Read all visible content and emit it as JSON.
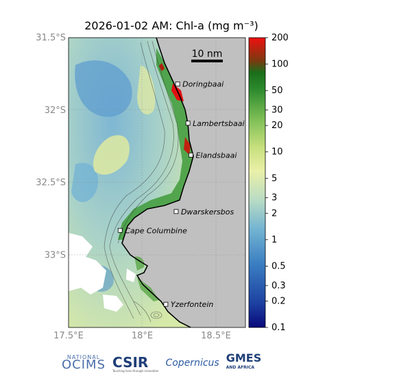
{
  "title": "2026-01-02 AM: Chl-a (mg m⁻³)",
  "chart_data": {
    "type": "heatmap",
    "variable": "Chl-a",
    "units": "mg m⁻³",
    "date": "2026-01-02 AM",
    "scale": "log",
    "colorbar_range": [
      0.1,
      200
    ],
    "colorbar_ticks": [
      "200",
      "100",
      "50",
      "30",
      "20",
      "10",
      "5",
      "3",
      "2",
      "1",
      "0.5",
      "0.3",
      "0.2",
      "0.1"
    ],
    "colorbar_values": [
      200,
      100,
      50,
      30,
      20,
      10,
      5,
      3,
      2,
      1,
      0.5,
      0.3,
      0.2,
      0.1
    ],
    "lat_ticks": [
      "31.5°S",
      "32°S",
      "32.5°S",
      "33°S"
    ],
    "lon_ticks": [
      "17.5°E",
      "18°E",
      "18.5°E"
    ],
    "lat_range": [
      -33.5,
      -31.5
    ],
    "lon_range": [
      17.5,
      18.7
    ],
    "grid": true,
    "scale_bar": "10 nm",
    "places": [
      {
        "name": "Doringbaai",
        "lon": 18.24,
        "lat": -31.82
      },
      {
        "name": "Lambertsbaai",
        "lon": 18.31,
        "lat": -32.09
      },
      {
        "name": "Elandsbaai",
        "lon": 18.33,
        "lat": -32.31
      },
      {
        "name": "Dwarskersbos",
        "lon": 18.23,
        "lat": -32.7
      },
      {
        "name": "Cape Columbine",
        "lon": 17.85,
        "lat": -32.83
      },
      {
        "name": "Yzerfontein",
        "lon": 18.16,
        "lat": -33.34
      }
    ]
  },
  "logos": {
    "ocims_top": "NATIONAL",
    "ocims": "OCIMS",
    "csir": "CSIR",
    "csir_sub": "Touching lives through innovation",
    "copernicus": "Copernicus",
    "gmes": "GMES",
    "gmes_sub": "AND AFRICA"
  }
}
